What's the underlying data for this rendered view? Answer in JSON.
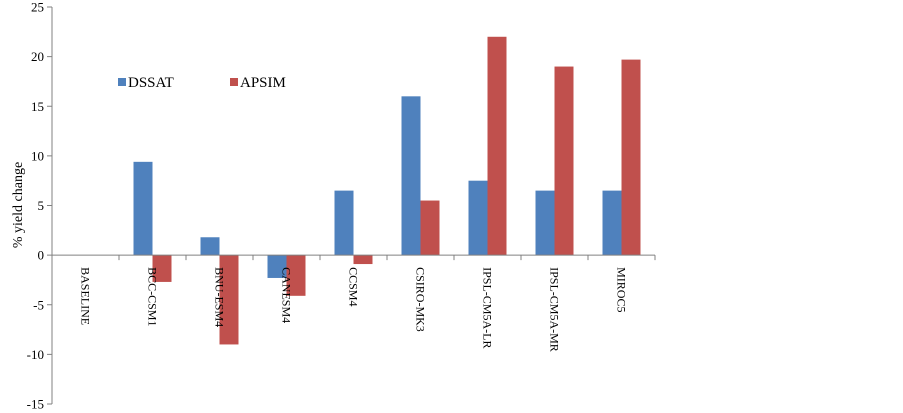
{
  "chart_data": {
    "type": "bar",
    "title": "",
    "xlabel": "",
    "ylabel": "% yield change",
    "ylim": [
      -15,
      25
    ],
    "yticks": [
      -15,
      -10,
      -5,
      0,
      5,
      10,
      15,
      20,
      25
    ],
    "grid": false,
    "legend_position": "upper-left",
    "categories": [
      "BASELINE",
      "BCC-CSM1",
      "BNU-ESM4",
      "CANESM4",
      "CCSM4",
      "CSIRO-MK3",
      "IPSL-CM5A-LR",
      "IPSL-CM5A-MR",
      "MIROC5"
    ],
    "series": [
      {
        "name": "DSSAT",
        "color": "#4f81bd",
        "values": [
          0,
          9.4,
          1.8,
          -2.3,
          6.5,
          16.0,
          7.5,
          6.5,
          6.5
        ]
      },
      {
        "name": "APSIM",
        "color": "#c0504d",
        "values": [
          0,
          -2.7,
          -9.0,
          -4.1,
          -0.9,
          5.5,
          22.0,
          19.0,
          19.7
        ]
      }
    ]
  }
}
